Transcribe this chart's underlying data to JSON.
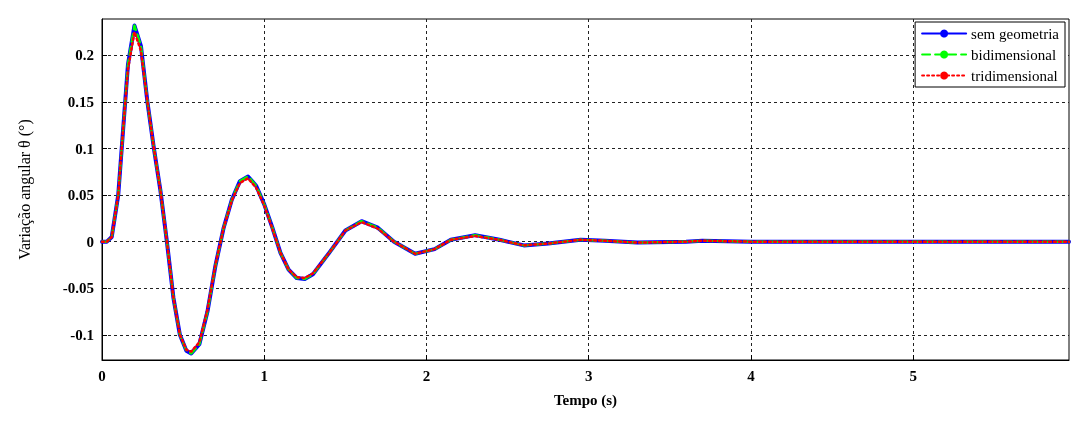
{
  "chart_data": {
    "type": "line",
    "xlabel": "Tempo (s)",
    "ylabel": "Variação angular θ (°)",
    "xlim": [
      0,
      5.96
    ],
    "xticks": [
      0,
      1,
      2,
      3,
      4,
      5
    ],
    "ylim": [
      -0.127,
      0.239
    ],
    "yticks": [
      -0.1,
      -0.05,
      0,
      0.05,
      0.1,
      0.15,
      0.2
    ],
    "grid": true,
    "legend": "top right",
    "marker": "none",
    "x": [
      0,
      0.03,
      0.06,
      0.1,
      0.13,
      0.16,
      0.2,
      0.24,
      0.28,
      0.32,
      0.36,
      0.4,
      0.44,
      0.48,
      0.52,
      0.55,
      0.6,
      0.65,
      0.7,
      0.75,
      0.8,
      0.85,
      0.9,
      0.95,
      1.0,
      1.05,
      1.1,
      1.15,
      1.2,
      1.25,
      1.3,
      1.4,
      1.5,
      1.6,
      1.7,
      1.8,
      1.93,
      2.05,
      2.15,
      2.3,
      2.45,
      2.6,
      2.75,
      2.95,
      3.1,
      3.3,
      3.6,
      3.7,
      4,
      5,
      5.96
    ],
    "series": [
      {
        "name": "sem geometria",
        "color": "#0000ff",
        "line_style": "solid",
        "values": [
          0,
          0,
          0.005,
          0.05,
          0.12,
          0.19,
          0.232,
          0.21,
          0.15,
          0.1,
          0.055,
          0,
          -0.06,
          -0.1,
          -0.117,
          -0.12,
          -0.11,
          -0.075,
          -0.025,
          0.015,
          0.045,
          0.065,
          0.07,
          0.06,
          0.04,
          0.015,
          -0.012,
          -0.03,
          -0.039,
          -0.04,
          -0.035,
          -0.012,
          0.012,
          0.022,
          0.015,
          0,
          -0.013,
          -0.008,
          0.002,
          0.007,
          0.002,
          -0.004,
          -0.002,
          0.002,
          0.001,
          -0.001,
          0,
          0.001,
          0,
          0,
          0
        ]
      },
      {
        "name": "bidimensional",
        "color": "#00ff00",
        "line_style": "dashed",
        "values": [
          0,
          0,
          0.005,
          0.05,
          0.12,
          0.19,
          0.232,
          0.21,
          0.15,
          0.1,
          0.055,
          0,
          -0.06,
          -0.1,
          -0.117,
          -0.12,
          -0.11,
          -0.075,
          -0.025,
          0.015,
          0.045,
          0.065,
          0.07,
          0.06,
          0.04,
          0.015,
          -0.012,
          -0.03,
          -0.039,
          -0.04,
          -0.035,
          -0.012,
          0.012,
          0.022,
          0.015,
          0,
          -0.013,
          -0.008,
          0.002,
          0.007,
          0.002,
          -0.004,
          -0.002,
          0.002,
          0.001,
          -0.001,
          0,
          0.001,
          0,
          0,
          0
        ]
      },
      {
        "name": "tridimensional",
        "color": "#ff0000",
        "line_style": "dotted",
        "values": [
          0,
          0,
          0.005,
          0.05,
          0.12,
          0.185,
          0.225,
          0.205,
          0.15,
          0.1,
          0.055,
          0,
          -0.06,
          -0.1,
          -0.116,
          -0.118,
          -0.108,
          -0.073,
          -0.024,
          0.015,
          0.044,
          0.063,
          0.068,
          0.058,
          0.039,
          0.014,
          -0.012,
          -0.03,
          -0.038,
          -0.039,
          -0.034,
          -0.012,
          0.012,
          0.021,
          0.014,
          0,
          -0.013,
          -0.008,
          0.002,
          0.006,
          0.002,
          -0.004,
          -0.002,
          0.002,
          0.001,
          -0.001,
          0,
          0.001,
          0,
          0,
          0
        ]
      }
    ]
  }
}
